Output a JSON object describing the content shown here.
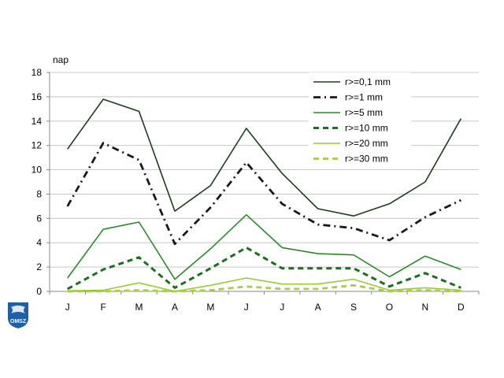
{
  "chart_data": {
    "type": "line",
    "ylabel": "nap",
    "xlabel": "",
    "title": "",
    "categories": [
      "J",
      "F",
      "M",
      "A",
      "M",
      "J",
      "J",
      "A",
      "S",
      "O",
      "N",
      "D"
    ],
    "ylim": [
      0,
      18
    ],
    "yticks": [
      0,
      2,
      4,
      6,
      8,
      10,
      12,
      14,
      16,
      18
    ],
    "grid": true,
    "legend_position": "top-right",
    "series": [
      {
        "name": "r>=0,1 mm",
        "color": "#1a3d1a",
        "dash": "solid",
        "width": 1.6,
        "values": [
          11.7,
          15.8,
          14.8,
          6.6,
          8.7,
          13.4,
          9.7,
          6.8,
          6.2,
          7.2,
          9.0,
          14.2
        ]
      },
      {
        "name": "r>=1 mm",
        "color": "#1a1a1a",
        "dash": "dashdot",
        "width": 2.8,
        "values": [
          7.0,
          12.2,
          10.8,
          3.9,
          6.9,
          10.6,
          7.2,
          5.5,
          5.2,
          4.2,
          6.1,
          7.5
        ]
      },
      {
        "name": "r>=5 mm",
        "color": "#2a8a2a",
        "dash": "solid",
        "width": 1.6,
        "values": [
          1.1,
          5.1,
          5.7,
          1.0,
          3.5,
          6.3,
          3.6,
          3.1,
          3.0,
          1.2,
          2.9,
          1.8
        ]
      },
      {
        "name": "r>=10 mm",
        "color": "#1f6e1f",
        "dash": "dash",
        "width": 3.0,
        "values": [
          0.2,
          1.8,
          2.8,
          0.3,
          1.9,
          3.6,
          1.9,
          1.9,
          1.9,
          0.4,
          1.5,
          0.3
        ]
      },
      {
        "name": "r>=20 mm",
        "color": "#99cc33",
        "dash": "solid",
        "width": 1.6,
        "values": [
          0.05,
          0.1,
          0.7,
          0.0,
          0.5,
          1.1,
          0.6,
          0.6,
          1.0,
          0.1,
          0.3,
          0.1
        ]
      },
      {
        "name": "r>=30 mm",
        "color": "#aacc44",
        "dash": "dash",
        "width": 2.8,
        "values": [
          0.0,
          0.0,
          0.1,
          0.0,
          0.1,
          0.4,
          0.2,
          0.2,
          0.5,
          0.0,
          0.1,
          0.0
        ]
      }
    ]
  },
  "logo": {
    "text": "OMSZ",
    "color": "#1f5fa8"
  }
}
